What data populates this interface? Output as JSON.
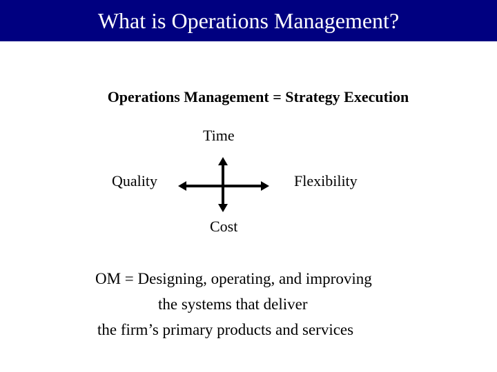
{
  "slide": {
    "title": "What is Operations Management?",
    "subtitle": "Operations Management = Strategy Execution",
    "diagram": {
      "top": "Time",
      "left": "Quality",
      "right": "Flexibility",
      "bottom": "Cost"
    },
    "definition": [
      "OM = Designing, operating, and improving",
      "the systems that deliver",
      "the firm’s primary products and services"
    ],
    "colors": {
      "header": "#000080",
      "title_text": "#ffffff"
    }
  }
}
